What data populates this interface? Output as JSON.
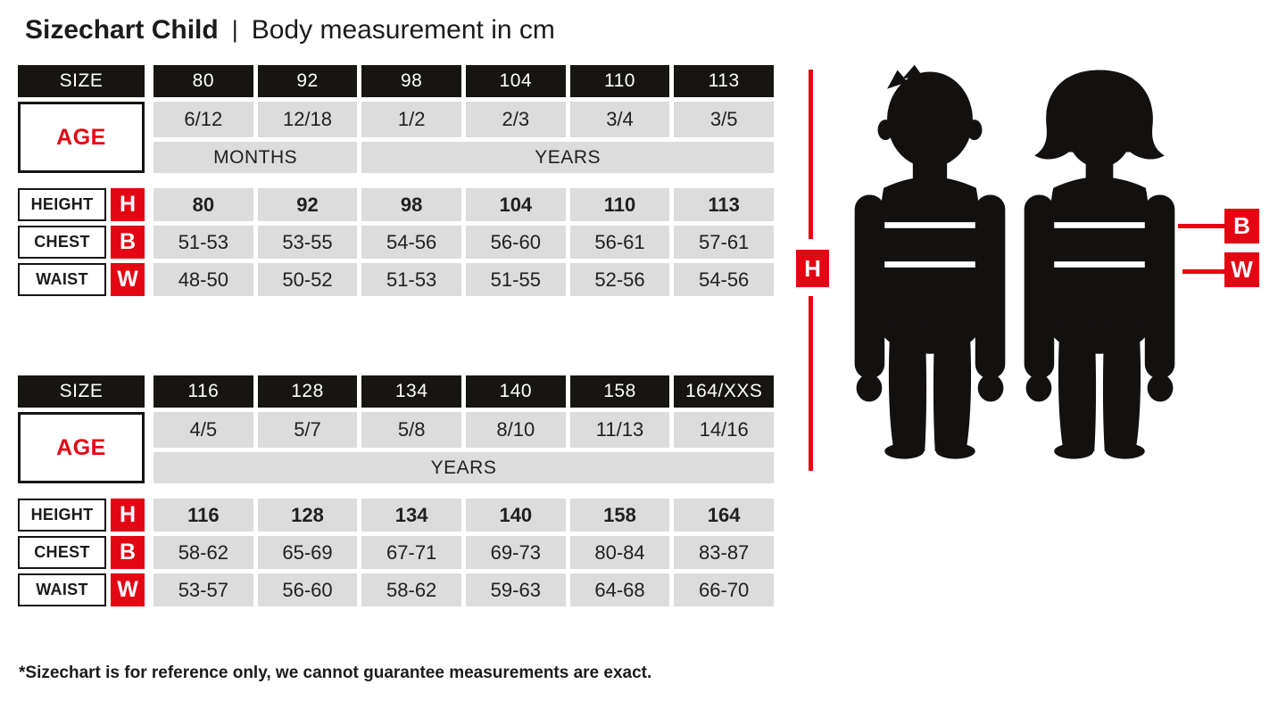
{
  "title": {
    "main": "Sizechart Child",
    "separator": "|",
    "subtitle": "Body measurement in cm"
  },
  "colors": {
    "accent_red": "#e30613",
    "table_black": "#171512",
    "cell_gray": "#dcdcdc"
  },
  "figure": {
    "height_marker": "H",
    "chest_marker": "B",
    "waist_marker": "W"
  },
  "tables": [
    {
      "size_label": "SIZE",
      "age_label": "AGE",
      "sizes": [
        "80",
        "92",
        "98",
        "104",
        "110",
        "113"
      ],
      "ages": [
        "6/12",
        "12/18",
        "1/2",
        "2/3",
        "3/4",
        "3/5"
      ],
      "age_units": [
        {
          "label": "MONTHS",
          "span": 2
        },
        {
          "label": "YEARS",
          "span": 4
        }
      ],
      "rows": [
        {
          "label": "HEIGHT",
          "letter": "H",
          "bold": true,
          "values": [
            "80",
            "92",
            "98",
            "104",
            "110",
            "113"
          ]
        },
        {
          "label": "CHEST",
          "letter": "B",
          "bold": false,
          "values": [
            "51-53",
            "53-55",
            "54-56",
            "56-60",
            "56-61",
            "57-61"
          ]
        },
        {
          "label": "WAIST",
          "letter": "W",
          "bold": false,
          "values": [
            "48-50",
            "50-52",
            "51-53",
            "51-55",
            "52-56",
            "54-56"
          ]
        }
      ]
    },
    {
      "size_label": "SIZE",
      "age_label": "AGE",
      "sizes": [
        "116",
        "128",
        "134",
        "140",
        "158",
        "164/XXS"
      ],
      "ages": [
        "4/5",
        "5/7",
        "5/8",
        "8/10",
        "11/13",
        "14/16"
      ],
      "age_units": [
        {
          "label": "YEARS",
          "span": 6
        }
      ],
      "rows": [
        {
          "label": "HEIGHT",
          "letter": "H",
          "bold": true,
          "values": [
            "116",
            "128",
            "134",
            "140",
            "158",
            "164"
          ]
        },
        {
          "label": "CHEST",
          "letter": "B",
          "bold": false,
          "values": [
            "58-62",
            "65-69",
            "67-71",
            "69-73",
            "80-84",
            "83-87"
          ]
        },
        {
          "label": "WAIST",
          "letter": "W",
          "bold": false,
          "values": [
            "53-57",
            "56-60",
            "58-62",
            "59-63",
            "64-68",
            "66-70"
          ]
        }
      ]
    }
  ],
  "footnote": "*Sizechart is for reference only, we cannot guarantee measurements are exact."
}
